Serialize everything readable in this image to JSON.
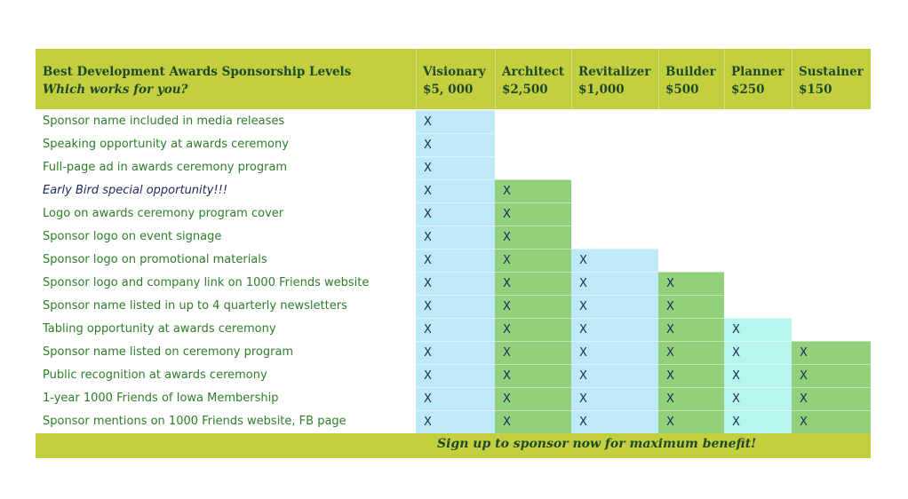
{
  "header": {
    "title": "Best Development Awards Sponsorship Levels",
    "subtitle": "Which works for you?"
  },
  "levels": [
    {
      "name": "Visionary",
      "price": "$5, 000",
      "color": "#c0e9f8",
      "first_row": 0
    },
    {
      "name": "Architect",
      "price": "$2,500",
      "color": "#93d07c",
      "first_row": 3
    },
    {
      "name": "Revitalizer",
      "price": "$1,000",
      "color": "#c0e9f8",
      "first_row": 6
    },
    {
      "name": "Builder",
      "price": "$500",
      "color": "#93d07c",
      "first_row": 7
    },
    {
      "name": "Planner",
      "price": "$250",
      "color": "#b6f6ec",
      "first_row": 9
    },
    {
      "name": "Sustainer",
      "price": "$150",
      "color": "#93d07c",
      "first_row": 10
    }
  ],
  "mark": "X",
  "benefits": [
    {
      "label": "Sponsor name included in media releases"
    },
    {
      "label": "Speaking opportunity at awards ceremony"
    },
    {
      "label": "Full-page ad in awards ceremony program"
    },
    {
      "label": "Early Bird special opportunity!!!",
      "special": true
    },
    {
      "label": "Logo on awards ceremony program cover"
    },
    {
      "label": "Sponsor logo on event signage"
    },
    {
      "label": "Sponsor logo on promotional materials"
    },
    {
      "label": "Sponsor logo and company link on 1000 Friends website"
    },
    {
      "label": "Sponsor name listed in up to 4 quarterly newsletters"
    },
    {
      "label": "Tabling opportunity at awards ceremony"
    },
    {
      "label": "Sponsor name listed on ceremony program"
    },
    {
      "label": "Public recognition at awards ceremony"
    },
    {
      "label": "1-year 1000 Friends of Iowa Membership"
    },
    {
      "label": "Sponsor mentions on 1000 Friends website, FB page"
    }
  ],
  "footer": {
    "message": "Sign up to sponsor now for maximum benefit!"
  }
}
